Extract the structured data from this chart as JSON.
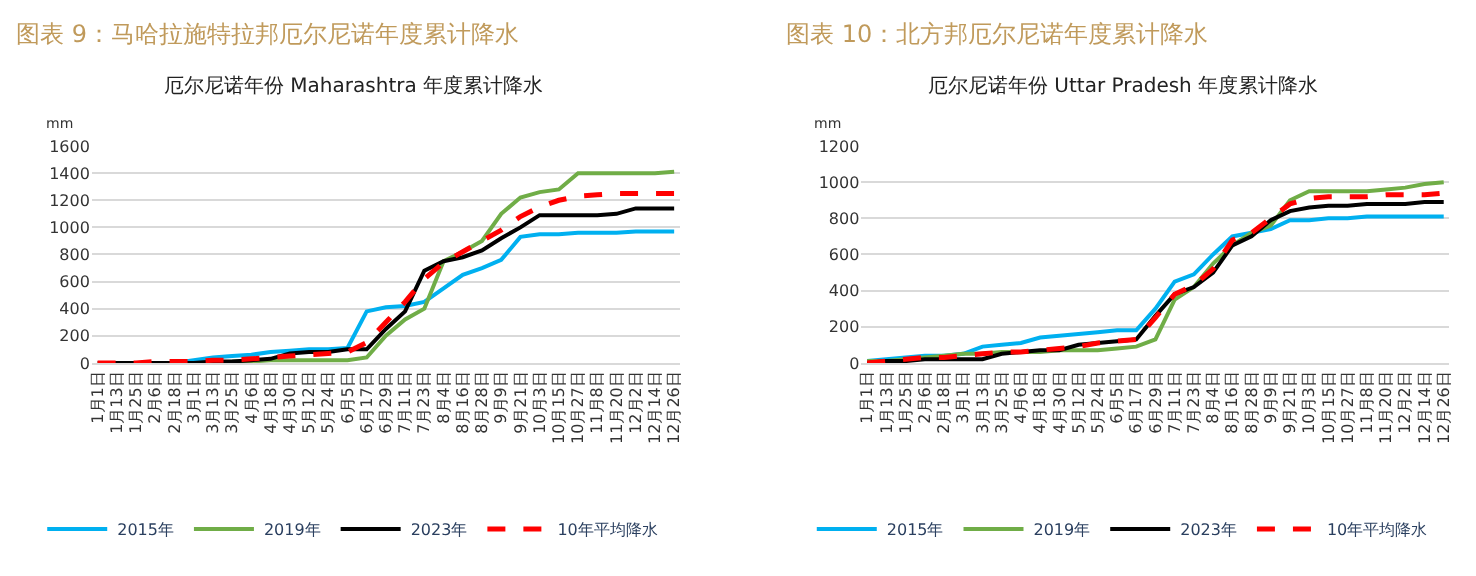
{
  "chart_data": [
    {
      "type": "line",
      "title": "图表 9：马哈拉施特拉邦厄尔尼诺年度累计降水",
      "subtitle": "厄尔尼诺年份 Maharashtra 年度累计降水",
      "ylabel": "mm",
      "categories": [
        "1月1日",
        "1月13日",
        "1月25日",
        "2月6日",
        "2月18日",
        "3月1日",
        "3月13日",
        "3月25日",
        "4月6日",
        "4月18日",
        "4月30日",
        "5月12日",
        "5月24日",
        "6月5日",
        "6月17日",
        "6月29日",
        "7月11日",
        "7月23日",
        "8月4日",
        "8月16日",
        "8月28日",
        "9月9日",
        "9月21日",
        "10月3日",
        "10月15日",
        "10月27日",
        "11月8日",
        "11月20日",
        "12月2日",
        "12月14日",
        "12月26日"
      ],
      "series": [
        {
          "name": "2015年",
          "color": "#00b0f0",
          "values": [
            null,
            null,
            null,
            0,
            0,
            20,
            40,
            50,
            60,
            80,
            90,
            100,
            100,
            110,
            380,
            410,
            420,
            450,
            550,
            650,
            700,
            760,
            930,
            950,
            950,
            960,
            960,
            960,
            970,
            970,
            970
          ]
        },
        {
          "name": "2019年",
          "color": "#70ad47",
          "values": [
            null,
            null,
            null,
            null,
            null,
            null,
            null,
            10,
            10,
            20,
            20,
            20,
            20,
            20,
            40,
            200,
            320,
            400,
            750,
            820,
            900,
            1100,
            1220,
            1260,
            1280,
            1400,
            1400,
            1400,
            1400,
            1400,
            1410
          ]
        },
        {
          "name": "2023年",
          "color": "#000000",
          "values": [
            0,
            0,
            0,
            0,
            0,
            0,
            10,
            10,
            20,
            30,
            70,
            80,
            80,
            100,
            100,
            250,
            380,
            680,
            750,
            780,
            830,
            920,
            1000,
            1090,
            1090,
            1090,
            1090,
            1100,
            1140,
            1140,
            1140
          ]
        },
        {
          "name": "10年平均降水",
          "color": "#ff0000",
          "line_style": "dashed",
          "values": [
            0,
            0,
            0,
            10,
            10,
            10,
            20,
            20,
            30,
            40,
            50,
            60,
            70,
            80,
            150,
            300,
            450,
            620,
            740,
            820,
            900,
            980,
            1080,
            1150,
            1200,
            1230,
            1240,
            1250,
            1250,
            1250,
            1250
          ]
        }
      ],
      "ylim": [
        0,
        1600
      ],
      "yticks": [
        0,
        200,
        400,
        600,
        800,
        1000,
        1200,
        1400,
        1600
      ],
      "grid": "y",
      "legend": "bottom",
      "marker": "none"
    },
    {
      "type": "line",
      "title": "图表 10：北方邦厄尔尼诺年度累计降水",
      "subtitle": "厄尔尼诺年份 Uttar Pradesh 年度累计降水",
      "ylabel": "mm",
      "categories": [
        "1月1日",
        "1月13日",
        "1月25日",
        "2月6日",
        "2月18日",
        "3月1日",
        "3月13日",
        "3月25日",
        "4月6日",
        "4月18日",
        "4月30日",
        "5月12日",
        "5月24日",
        "6月5日",
        "6月17日",
        "6月29日",
        "7月11日",
        "7月23日",
        "8月4日",
        "8月16日",
        "8月28日",
        "9月9日",
        "9月21日",
        "10月3日",
        "10月15日",
        "10月27日",
        "11月8日",
        "11月20日",
        "12月2日",
        "12月14日",
        "12月26日"
      ],
      "series": [
        {
          "name": "2015年",
          "color": "#00b0f0",
          "values": [
            10,
            20,
            30,
            40,
            40,
            50,
            90,
            100,
            110,
            140,
            150,
            160,
            170,
            180,
            180,
            300,
            450,
            490,
            600,
            700,
            720,
            740,
            790,
            790,
            800,
            800,
            810,
            810,
            810,
            810,
            810
          ]
        },
        {
          "name": "2019年",
          "color": "#70ad47",
          "values": [
            10,
            10,
            20,
            30,
            40,
            50,
            50,
            60,
            60,
            60,
            70,
            70,
            70,
            80,
            90,
            130,
            350,
            420,
            550,
            650,
            720,
            760,
            900,
            950,
            950,
            950,
            950,
            960,
            970,
            990,
            1000
          ]
        },
        {
          "name": "2023年",
          "color": "#000000",
          "values": [
            0,
            10,
            10,
            20,
            20,
            20,
            20,
            50,
            60,
            70,
            70,
            100,
            110,
            120,
            130,
            260,
            380,
            420,
            500,
            650,
            700,
            790,
            840,
            860,
            870,
            870,
            880,
            880,
            880,
            890,
            890
          ]
        },
        {
          "name": "10年平均降水",
          "color": "#ff0000",
          "line_style": "dashed",
          "values": [
            0,
            10,
            20,
            30,
            30,
            40,
            50,
            60,
            60,
            70,
            80,
            90,
            110,
            120,
            130,
            250,
            380,
            430,
            520,
            680,
            720,
            800,
            880,
            910,
            920,
            920,
            920,
            930,
            930,
            930,
            940
          ]
        }
      ],
      "ylim": [
        0,
        1200
      ],
      "yticks": [
        0,
        200,
        400,
        600,
        800,
        1000,
        1200
      ],
      "grid": "y",
      "legend": "bottom",
      "marker": "none"
    }
  ]
}
